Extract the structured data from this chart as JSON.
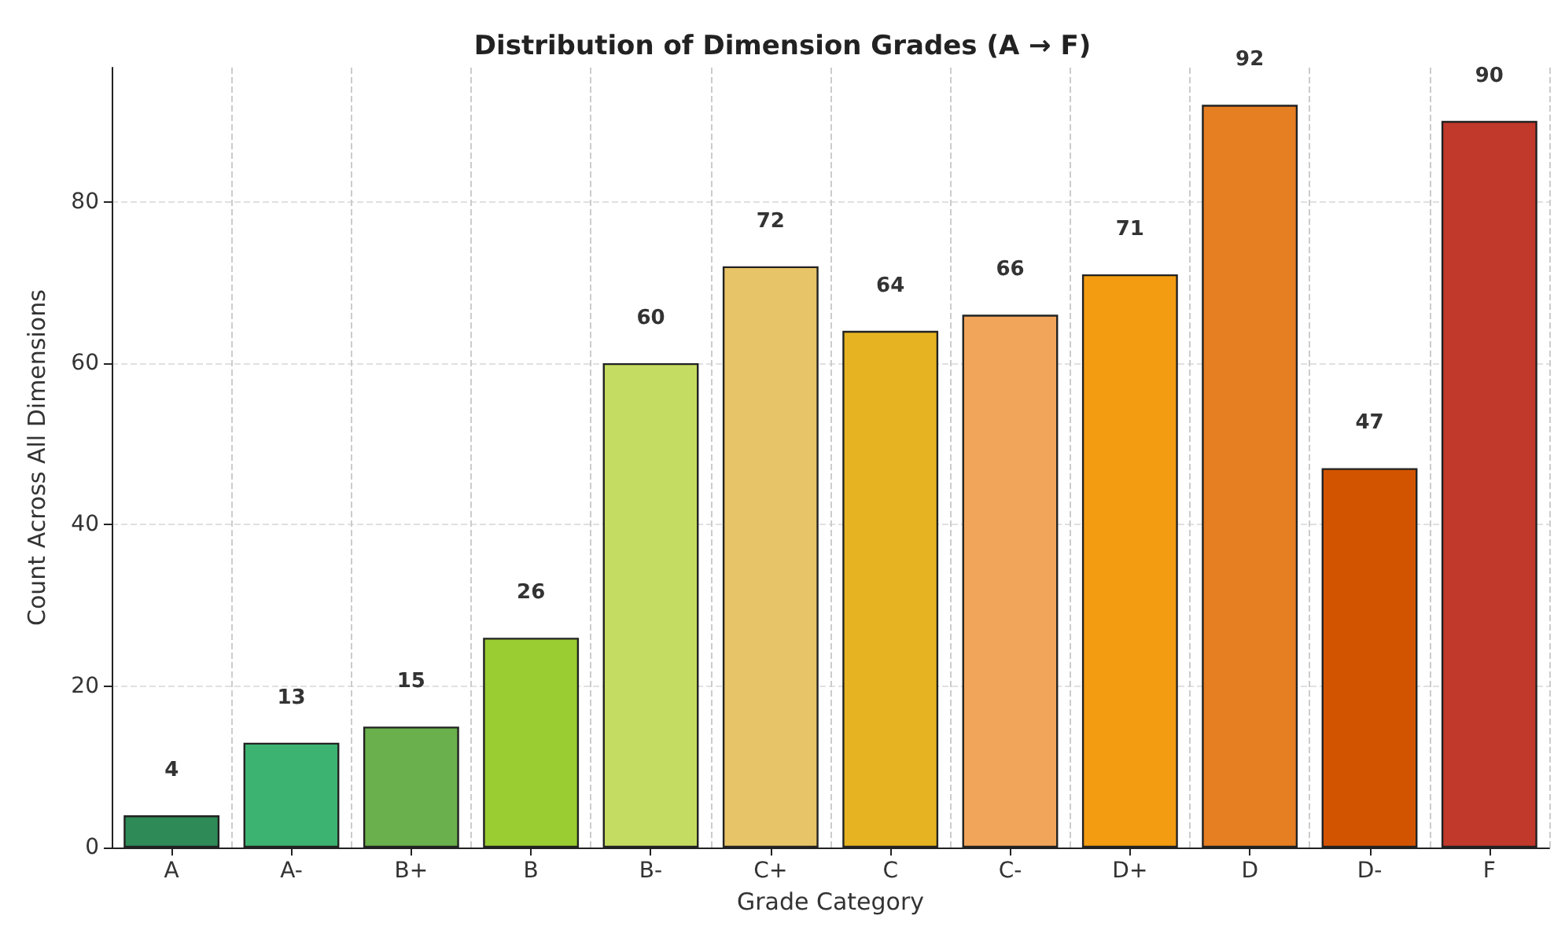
{
  "chart_data": {
    "type": "bar",
    "title": "Distribution of Dimension Grades (A → F)",
    "xlabel": "Grade Category",
    "ylabel": "Count Across All Dimensions",
    "categories": [
      "A",
      "A-",
      "B+",
      "B",
      "B-",
      "C+",
      "C",
      "C-",
      "D+",
      "D",
      "D-",
      "F"
    ],
    "values": [
      4,
      13,
      15,
      26,
      60,
      72,
      64,
      66,
      71,
      92,
      47,
      90
    ],
    "colors": [
      "#2e8b57",
      "#3cb371",
      "#6ab04c",
      "#9acd32",
      "#c5dc62",
      "#e8c468",
      "#e6b422",
      "#f0a55a",
      "#f39c12",
      "#e67e22",
      "#d35400",
      "#c0392b"
    ],
    "ylim": [
      0,
      96.6
    ],
    "yticks": [
      0,
      20,
      40,
      60,
      80
    ],
    "grid": true,
    "data_labels": true
  }
}
